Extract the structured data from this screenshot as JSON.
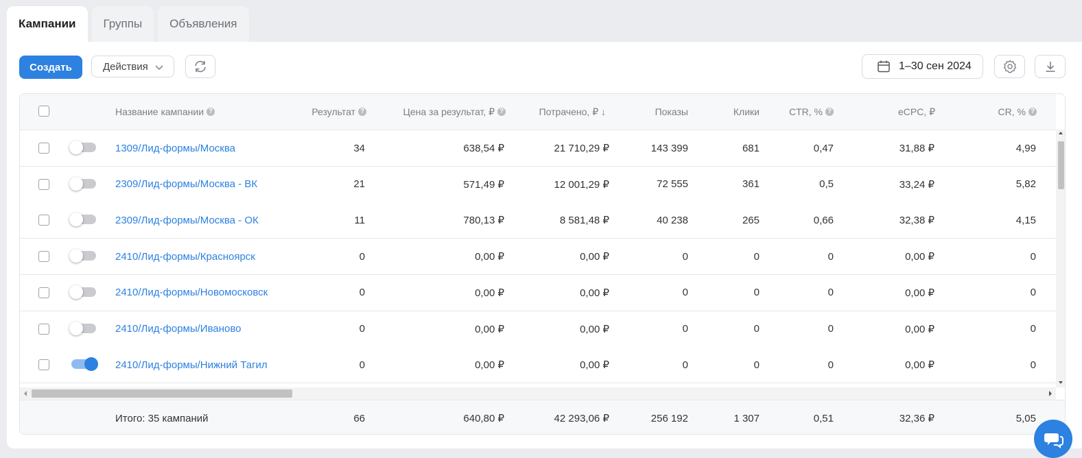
{
  "tabs": [
    {
      "label": "Кампании",
      "active": true
    },
    {
      "label": "Группы",
      "active": false
    },
    {
      "label": "Объявления",
      "active": false
    }
  ],
  "toolbar": {
    "create_label": "Создать",
    "actions_label": "Действия",
    "date_range": "1–30 сен 2024"
  },
  "table": {
    "columns": {
      "name": "Название кампании",
      "result": "Результат",
      "cost_per_result": "Цена за результат, ₽",
      "spent": "Потрачено, ₽ ↓",
      "impressions": "Показы",
      "clicks": "Клики",
      "ctr": "CTR, %",
      "ecpc": "eCPC, ₽",
      "cr": "CR, %"
    },
    "rows": [
      {
        "active": false,
        "name": "1309/Лид-формы/Москва",
        "result": "34",
        "cost_per_result": "638,54 ₽",
        "spent": "21 710,29 ₽",
        "impressions": "143 399",
        "clicks": "681",
        "ctr": "0,47",
        "ecpc": "31,88 ₽",
        "cr": "4,99"
      },
      {
        "active": false,
        "name": "2309/Лид-формы/Москва - ВК",
        "result": "21",
        "cost_per_result": "571,49 ₽",
        "spent": "12 001,29 ₽",
        "impressions": "72 555",
        "clicks": "361",
        "ctr": "0,5",
        "ecpc": "33,24 ₽",
        "cr": "5,82"
      },
      {
        "active": false,
        "name": "2309/Лид-формы/Москва - ОК",
        "result": "11",
        "cost_per_result": "780,13 ₽",
        "spent": "8 581,48 ₽",
        "impressions": "40 238",
        "clicks": "265",
        "ctr": "0,66",
        "ecpc": "32,38 ₽",
        "cr": "4,15"
      },
      {
        "active": false,
        "name": "2410/Лид-формы/Красноярск",
        "result": "0",
        "cost_per_result": "0,00 ₽",
        "spent": "0,00 ₽",
        "impressions": "0",
        "clicks": "0",
        "ctr": "0",
        "ecpc": "0,00 ₽",
        "cr": "0"
      },
      {
        "active": false,
        "name": "2410/Лид-формы/Новомосковск",
        "result": "0",
        "cost_per_result": "0,00 ₽",
        "spent": "0,00 ₽",
        "impressions": "0",
        "clicks": "0",
        "ctr": "0",
        "ecpc": "0,00 ₽",
        "cr": "0"
      },
      {
        "active": false,
        "name": "2410/Лид-формы/Иваново",
        "result": "0",
        "cost_per_result": "0,00 ₽",
        "spent": "0,00 ₽",
        "impressions": "0",
        "clicks": "0",
        "ctr": "0",
        "ecpc": "0,00 ₽",
        "cr": "0"
      },
      {
        "active": true,
        "name": "2410/Лид-формы/Нижний Тагил",
        "result": "0",
        "cost_per_result": "0,00 ₽",
        "spent": "0,00 ₽",
        "impressions": "0",
        "clicks": "0",
        "ctr": "0",
        "ecpc": "0,00 ₽",
        "cr": "0"
      }
    ],
    "total": {
      "label": "Итого: 35 кампаний",
      "result": "66",
      "cost_per_result": "640,80 ₽",
      "spent": "42 293,06 ₽",
      "impressions": "256 192",
      "clicks": "1 307",
      "ctr": "0,51",
      "ecpc": "32,36 ₽",
      "cr": "5,05"
    }
  },
  "colors": {
    "accent": "#2d81e0",
    "page_bg": "#ebecef"
  },
  "icons": [
    "calendar-icon",
    "gear-icon",
    "download-icon",
    "refresh-icon",
    "chevron-down-icon",
    "help-icon",
    "chat-icon"
  ]
}
